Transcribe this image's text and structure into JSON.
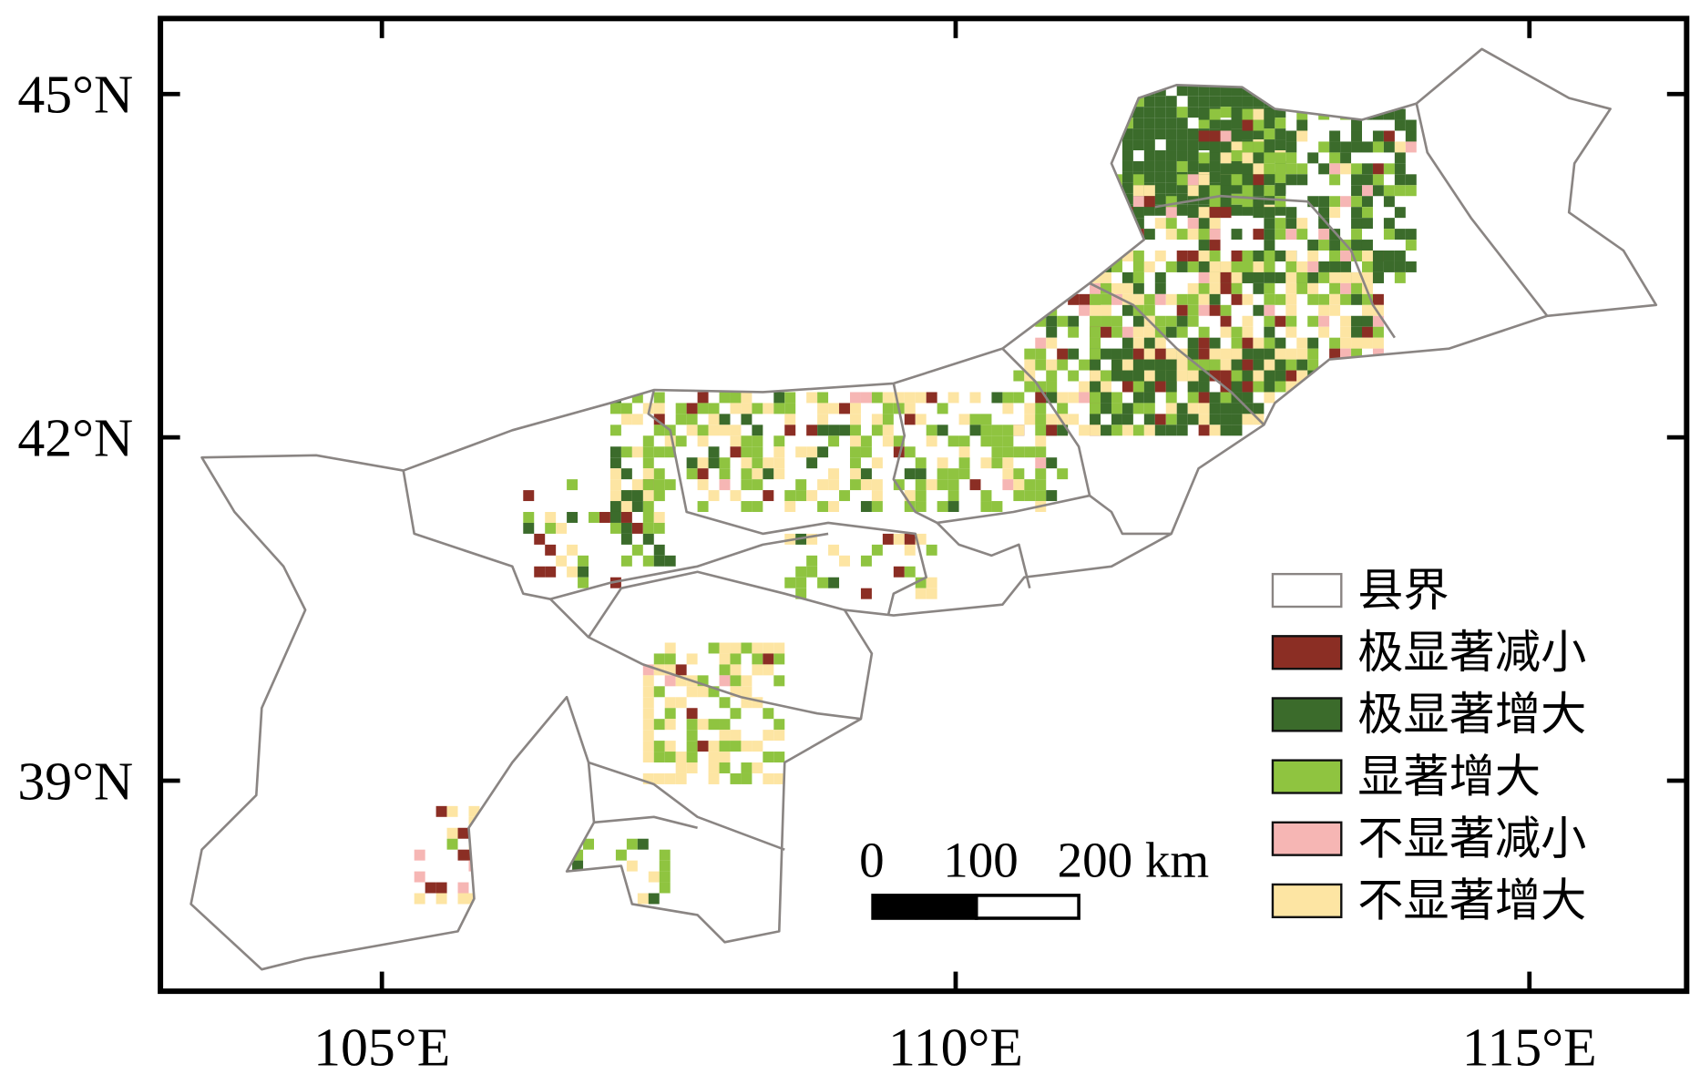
{
  "map": {
    "xlim": [
      103.07,
      116.37
    ],
    "ylim": [
      37.16,
      45.66
    ],
    "xticks": [
      {
        "value": 105,
        "label": "105°E"
      },
      {
        "value": 110,
        "label": "110°E"
      },
      {
        "value": 115,
        "label": "115°E"
      }
    ],
    "yticks": [
      {
        "value": 39,
        "label": "39°N"
      },
      {
        "value": 42,
        "label": "42°N"
      },
      {
        "value": 45,
        "label": "45°N"
      }
    ],
    "legend": [
      {
        "name": "县界",
        "color": "#ffffff"
      },
      {
        "name": "极显著减小",
        "color": "#8b2e24"
      },
      {
        "name": "极显著增大",
        "color": "#3b6b2b"
      },
      {
        "name": "显著增大",
        "color": "#8fc440"
      },
      {
        "name": "不显著减小",
        "color": "#f6b6b4"
      },
      {
        "name": "不显著增大",
        "color": "#fde5a3"
      }
    ],
    "scale_bar": {
      "labels": [
        "0",
        "100",
        "200 km"
      ]
    }
  }
}
